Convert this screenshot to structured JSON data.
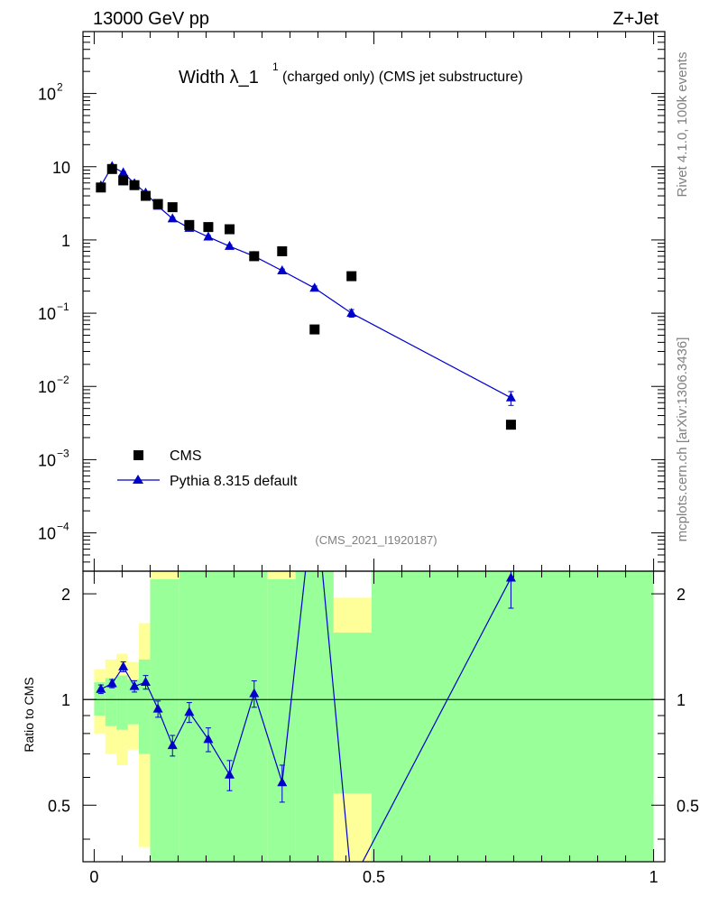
{
  "header": {
    "energy": "13000 GeV pp",
    "process": "Z+Jet"
  },
  "side_labels": {
    "rivet": "Rivet 4.1.0,  100k events",
    "mcplots": "mcplots.cern.ch [arXiv:1306.3436]"
  },
  "title": {
    "main": "Width λ_1",
    "superscript": "1",
    "sub": "(charged only) (CMS jet substructure)"
  },
  "analysis_id": "(CMS_2021_I1920187)",
  "legend": {
    "data_label": "CMS",
    "mc_label": "Pythia 8.315 default"
  },
  "colors": {
    "mc": "#0000cc",
    "data": "#000000",
    "band_green": "#99ff99",
    "band_yellow": "#ffff99"
  },
  "ratio_ylabel": "Ratio to CMS",
  "chart_data": [
    {
      "type": "scatter",
      "title": "Width λ_1^1 (charged only) (CMS jet substructure)",
      "xlim": [
        -0.02,
        1.02
      ],
      "ylim": [
        3e-05,
        700
      ],
      "yscale": "log",
      "y_ticks": [
        {
          "v": 0.0001,
          "base": "10",
          "exp": "−4"
        },
        {
          "v": 0.001,
          "base": "10",
          "exp": "−3"
        },
        {
          "v": 0.01,
          "base": "10",
          "exp": "−2"
        },
        {
          "v": 0.1,
          "base": "10",
          "exp": "−1"
        },
        {
          "v": 1,
          "base": "1",
          "exp": ""
        },
        {
          "v": 10,
          "base": "10",
          "exp": ""
        },
        {
          "v": 100,
          "base": "10",
          "exp": "2"
        }
      ],
      "series": [
        {
          "name": "CMS",
          "marker": "square",
          "x": [
            0.012,
            0.032,
            0.052,
            0.072,
            0.092,
            0.114,
            0.14,
            0.17,
            0.204,
            0.242,
            0.286,
            0.336,
            0.394,
            0.46,
            0.745
          ],
          "y": [
            5.2,
            9.3,
            6.5,
            5.6,
            4.0,
            3.1,
            2.8,
            1.6,
            1.5,
            1.4,
            0.6,
            0.7,
            0.06,
            0.32,
            0.003
          ]
        },
        {
          "name": "Pythia 8.315 default",
          "marker": "triangle",
          "x": [
            0.012,
            0.032,
            0.052,
            0.072,
            0.092,
            0.114,
            0.14,
            0.17,
            0.204,
            0.242,
            0.286,
            0.336,
            0.394,
            0.46,
            0.745
          ],
          "y": [
            5.5,
            10.1,
            8.3,
            5.9,
            4.4,
            2.9,
            1.95,
            1.45,
            1.1,
            0.82,
            0.6,
            0.38,
            0.22,
            0.1,
            0.007
          ],
          "yerr": [
            0.2,
            0.4,
            0.3,
            0.2,
            0.15,
            0.1,
            0.08,
            0.06,
            0.05,
            0.04,
            0.03,
            0.02,
            0.015,
            0.012,
            0.0015
          ]
        }
      ]
    },
    {
      "type": "line",
      "title": "Ratio to CMS",
      "xlabel": "",
      "ylabel": "Ratio to CMS",
      "xlim": [
        -0.02,
        1.02
      ],
      "ylim": [
        0.345,
        2.32
      ],
      "yscale": "log",
      "x_ticks": [
        0,
        0.5,
        1
      ],
      "x_tick_labels": [
        "0",
        "0.5",
        "1"
      ],
      "y_ticks": [
        0.5,
        1,
        2
      ],
      "y_tick_labels": [
        "0.5",
        "1",
        "2"
      ],
      "reference_line": 1,
      "bands": [
        {
          "x0": 0.0,
          "x1": 0.02,
          "green": [
            0.9,
            1.12
          ],
          "yellow": [
            0.8,
            1.22
          ]
        },
        {
          "x0": 0.02,
          "x1": 0.04,
          "green": [
            0.84,
            1.15
          ],
          "yellow": [
            0.7,
            1.3
          ]
        },
        {
          "x0": 0.04,
          "x1": 0.06,
          "green": [
            0.82,
            1.17
          ],
          "yellow": [
            0.65,
            1.35
          ]
        },
        {
          "x0": 0.06,
          "x1": 0.08,
          "green": [
            0.85,
            1.14
          ],
          "yellow": [
            0.72,
            1.28
          ]
        },
        {
          "x0": 0.08,
          "x1": 0.1,
          "green": [
            0.7,
            1.3
          ],
          "yellow": [
            0.38,
            1.65
          ]
        },
        {
          "x0": 0.1,
          "x1": 0.152,
          "green": [
            0.345,
            2.2
          ],
          "yellow": [
            0.345,
            2.32
          ]
        },
        {
          "x0": 0.152,
          "x1": 0.31,
          "green": [
            0.345,
            2.32
          ],
          "yellow": null
        },
        {
          "x0": 0.31,
          "x1": 0.36,
          "green": [
            0.345,
            2.2
          ],
          "yellow": [
            0.345,
            2.32
          ]
        },
        {
          "x0": 0.36,
          "x1": 0.428,
          "green": [
            0.345,
            2.32
          ],
          "yellow": null
        },
        {
          "x0": 0.428,
          "x1": 0.496,
          "green": [
            0.54,
            1.55
          ],
          "yellow": [
            0.345,
            1.95
          ]
        },
        {
          "x0": 0.496,
          "x1": 1.0,
          "green": [
            0.345,
            2.32
          ],
          "yellow": null
        }
      ],
      "series": [
        {
          "name": "Pythia 8.315 default / CMS",
          "x": [
            0.012,
            0.032,
            0.052,
            0.072,
            0.092,
            0.114,
            0.14,
            0.17,
            0.204,
            0.242,
            0.286,
            0.336,
            0.394,
            0.46,
            0.745
          ],
          "y": [
            1.07,
            1.11,
            1.24,
            1.09,
            1.12,
            0.94,
            0.74,
            0.92,
            0.77,
            0.61,
            1.04,
            0.58,
            4.0,
            0.3,
            2.22
          ],
          "yerr": [
            0.03,
            0.03,
            0.04,
            0.04,
            0.05,
            0.05,
            0.05,
            0.06,
            0.06,
            0.06,
            0.09,
            0.07,
            0.3,
            0.05,
            0.4
          ]
        }
      ]
    }
  ]
}
